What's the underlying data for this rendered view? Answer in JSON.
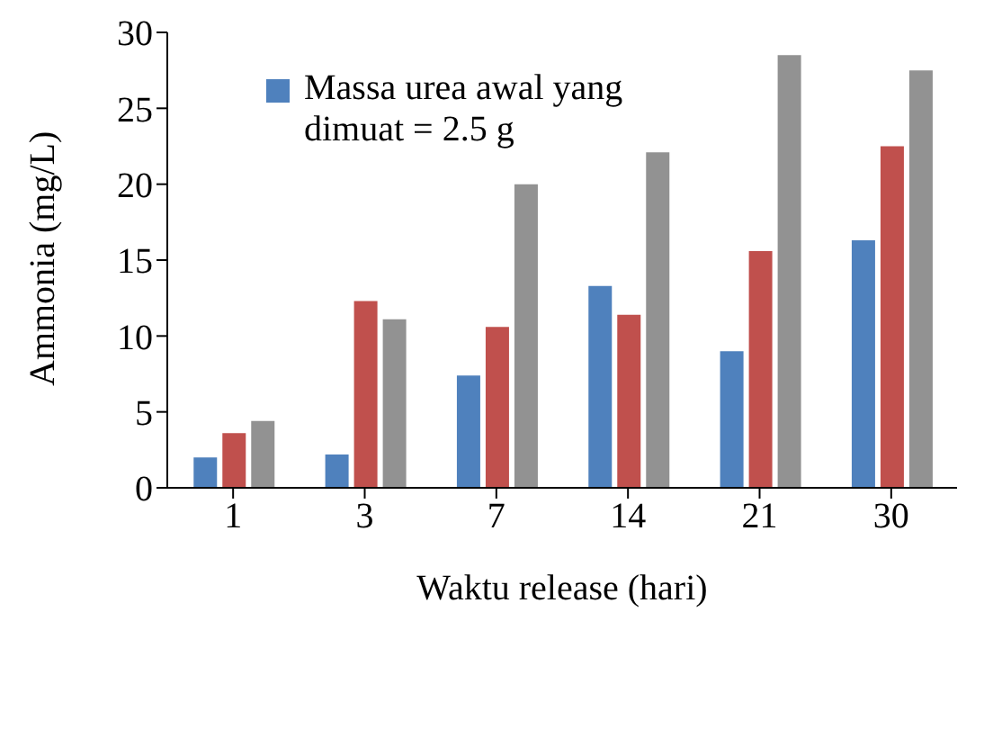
{
  "chart_data": {
    "type": "bar",
    "xlabel": "Waktu release (hari)",
    "ylabel": "Ammonia (mg/L)",
    "categories": [
      "1",
      "3",
      "7",
      "14",
      "21",
      "30"
    ],
    "series": [
      {
        "name": "Massa urea awal yang dimuat = 2.5 g",
        "color": "#4f81bd",
        "values": [
          2.0,
          2.2,
          7.4,
          13.3,
          9.0,
          16.3
        ]
      },
      {
        "color": "#c0504d",
        "values": [
          3.6,
          12.3,
          10.6,
          11.4,
          15.6,
          22.5
        ]
      },
      {
        "color": "#929292",
        "values": [
          4.4,
          11.1,
          20.0,
          22.1,
          28.5,
          27.5
        ]
      }
    ],
    "ylim": [
      0,
      30
    ],
    "yticks": [
      0,
      5,
      10,
      15,
      20,
      25,
      30
    ],
    "grid": false,
    "legend": "top left"
  }
}
